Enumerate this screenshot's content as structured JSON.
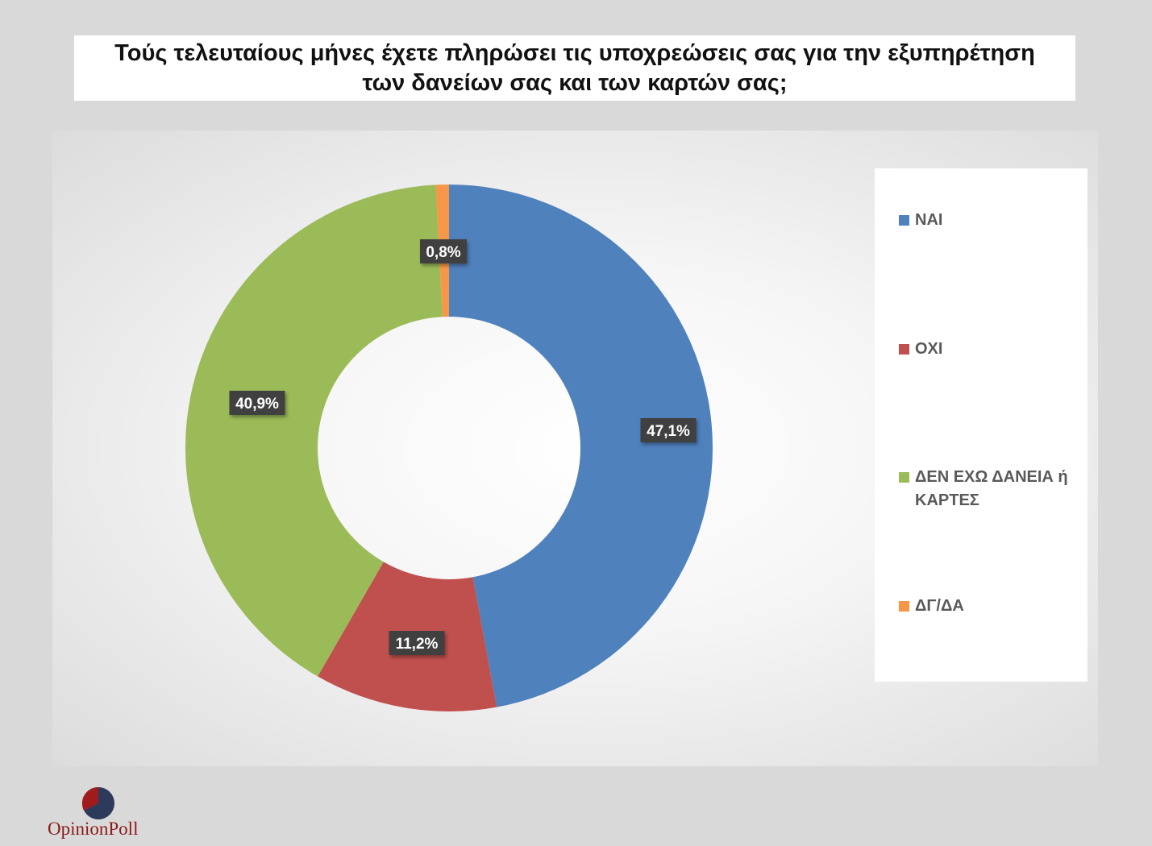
{
  "header": {
    "title": "Τούς τελευταίους μήνες έχετε πληρώσει τις υποχρεώσεις σας για την εξυπηρέτηση\nτων δανείων σας και των καρτών σας;"
  },
  "chart_data": {
    "type": "pie",
    "title": "Τούς τελευταίους μήνες έχετε πληρώσει τις υποχρεώσεις σας για την εξυπηρέτηση των δανείων σας και των καρτών σας;",
    "categories": [
      "ΝΑΙ",
      "ΟΧΙ",
      "ΔΕΝ ΕΧΩ ΔΑΝΕΙΑ ή ΚΑΡΤΕΣ",
      "ΔΓ/ΔΑ"
    ],
    "values": [
      47.1,
      11.2,
      40.9,
      0.8
    ],
    "data_labels": [
      "47,1%",
      "11,2%",
      "40,9%",
      "0,8%"
    ],
    "colors": [
      "#4f81bd",
      "#c0504d",
      "#9bbb59",
      "#f79646"
    ],
    "donut": true,
    "legend_position": "right"
  },
  "legend": {
    "items": [
      {
        "label": "ΝΑΙ",
        "color": "#4f81bd"
      },
      {
        "label": "ΟΧΙ",
        "color": "#c0504d"
      },
      {
        "label": "ΔΕΝ ΕΧΩ ΔΑΝΕΙΑ ή ΚΑΡΤΕΣ",
        "color": "#9bbb59"
      },
      {
        "label": "ΔΓ/ΔΑ",
        "color": "#f79646"
      }
    ]
  },
  "logo": {
    "text": "OpinionPoll",
    "colors": {
      "dark": "#2e3a5c",
      "red": "#a01c1c"
    }
  }
}
